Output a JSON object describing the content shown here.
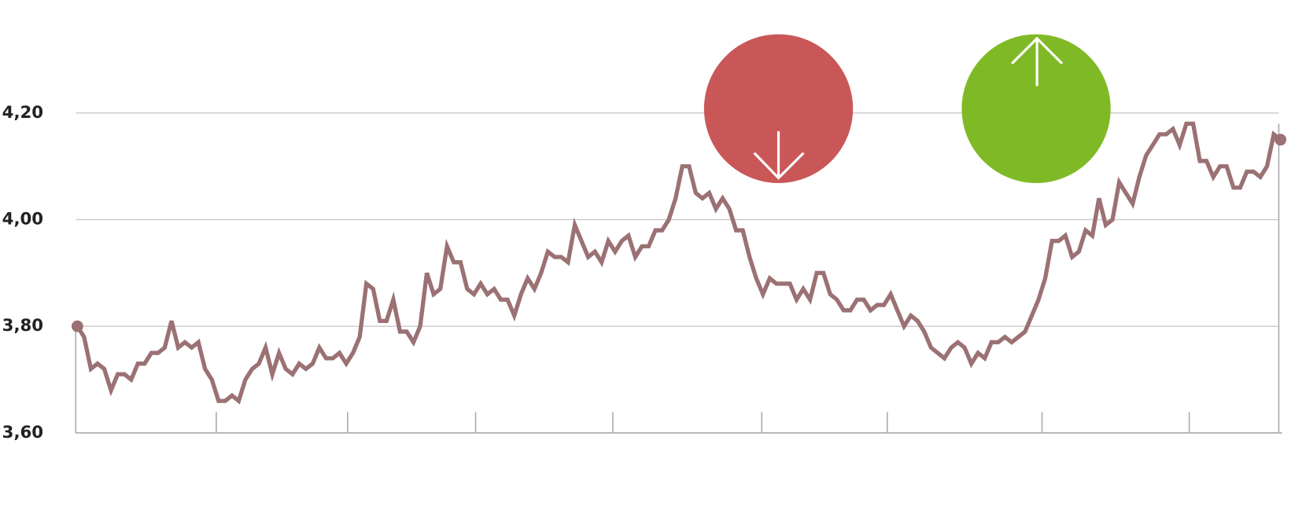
{
  "chart_data": {
    "type": "line",
    "values": [
      3.8,
      3.78,
      3.72,
      3.73,
      3.72,
      3.68,
      3.71,
      3.71,
      3.7,
      3.73,
      3.73,
      3.75,
      3.75,
      3.76,
      3.81,
      3.76,
      3.77,
      3.76,
      3.77,
      3.72,
      3.7,
      3.66,
      3.66,
      3.67,
      3.66,
      3.7,
      3.72,
      3.73,
      3.76,
      3.71,
      3.75,
      3.72,
      3.71,
      3.73,
      3.72,
      3.73,
      3.76,
      3.74,
      3.74,
      3.75,
      3.73,
      3.75,
      3.78,
      3.88,
      3.87,
      3.81,
      3.81,
      3.85,
      3.79,
      3.79,
      3.77,
      3.8,
      3.9,
      3.86,
      3.87,
      3.95,
      3.92,
      3.92,
      3.87,
      3.86,
      3.88,
      3.86,
      3.87,
      3.85,
      3.85,
      3.82,
      3.86,
      3.89,
      3.87,
      3.9,
      3.94,
      3.93,
      3.93,
      3.92,
      3.99,
      3.96,
      3.93,
      3.94,
      3.92,
      3.96,
      3.94,
      3.96,
      3.97,
      3.93,
      3.95,
      3.95,
      3.98,
      3.98,
      4.0,
      4.04,
      4.1,
      4.1,
      4.05,
      4.04,
      4.05,
      4.02,
      4.04,
      4.02,
      3.98,
      3.98,
      3.93,
      3.89,
      3.86,
      3.89,
      3.88,
      3.88,
      3.88,
      3.85,
      3.87,
      3.85,
      3.9,
      3.9,
      3.86,
      3.85,
      3.83,
      3.83,
      3.85,
      3.85,
      3.83,
      3.84,
      3.84,
      3.86,
      3.83,
      3.8,
      3.82,
      3.81,
      3.79,
      3.76,
      3.75,
      3.74,
      3.76,
      3.77,
      3.76,
      3.73,
      3.75,
      3.74,
      3.77,
      3.77,
      3.78,
      3.77,
      3.78,
      3.79,
      3.82,
      3.85,
      3.89,
      3.96,
      3.96,
      3.97,
      3.93,
      3.94,
      3.98,
      3.97,
      4.04,
      3.99,
      4.0,
      4.07,
      4.05,
      4.03,
      4.08,
      4.12,
      4.14,
      4.16,
      4.16,
      4.17,
      4.14,
      4.18,
      4.18,
      4.11,
      4.11,
      4.08,
      4.1,
      4.1,
      4.06,
      4.06,
      4.09,
      4.09,
      4.08,
      4.1,
      4.16,
      4.15
    ],
    "color": "#9b7173",
    "ylim": [
      3.6,
      4.4
    ],
    "yticks": [
      {
        "value": 3.6,
        "label": "3,60"
      },
      {
        "value": 3.8,
        "label": "3,80"
      },
      {
        "value": 4.0,
        "label": "4,00"
      },
      {
        "value": 4.2,
        "label": "4,20"
      }
    ],
    "grid": true
  }
}
